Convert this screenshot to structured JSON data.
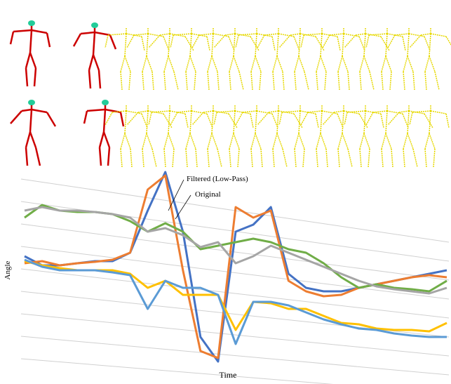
{
  "chart_data": {
    "type": "line",
    "y_label": "Angle",
    "x_label": "Time",
    "annotations": [
      "Filtered (Low-Pass)",
      "Original"
    ],
    "x": [
      0,
      1,
      2,
      3,
      4,
      5,
      6,
      7,
      8,
      9,
      10,
      11,
      12,
      13,
      14,
      15,
      16,
      17,
      18,
      19,
      20,
      21,
      22,
      23,
      24
    ],
    "xlim": [
      0,
      24
    ],
    "ylim": [
      0,
      290
    ],
    "series": [
      {
        "color": "#4472c4",
        "values": [
          165,
          152,
          152,
          155,
          158,
          158,
          170,
          230,
          285,
          200,
          50,
          15,
          200,
          210,
          235,
          140,
          120,
          115,
          115,
          120,
          125,
          130,
          135,
          140,
          145
        ]
      },
      {
        "color": "#ed7d31",
        "values": [
          155,
          158,
          152,
          155,
          157,
          160,
          170,
          260,
          280,
          145,
          30,
          20,
          235,
          220,
          230,
          130,
          115,
          108,
          110,
          120,
          125,
          130,
          135,
          138,
          135
        ]
      },
      {
        "color": "#70ad47",
        "values": [
          220,
          238,
          230,
          228,
          228,
          225,
          215,
          200,
          212,
          200,
          175,
          180,
          185,
          190,
          185,
          175,
          170,
          155,
          135,
          120,
          125,
          120,
          118,
          115,
          130
        ]
      },
      {
        "color": "#a5a5a5",
        "values": [
          230,
          235,
          230,
          230,
          228,
          225,
          220,
          200,
          205,
          195,
          178,
          185,
          155,
          165,
          180,
          170,
          160,
          150,
          140,
          130,
          122,
          118,
          115,
          112,
          120
        ]
      },
      {
        "color": "#ffc000",
        "values": [
          158,
          152,
          148,
          145,
          145,
          145,
          140,
          120,
          130,
          110,
          110,
          110,
          60,
          100,
          98,
          90,
          90,
          80,
          70,
          68,
          62,
          60,
          60,
          58,
          70
        ]
      },
      {
        "color": "#5b9bd5",
        "values": [
          160,
          150,
          145,
          145,
          145,
          142,
          138,
          90,
          130,
          120,
          120,
          110,
          40,
          100,
          100,
          95,
          85,
          75,
          68,
          62,
          60,
          55,
          52,
          50,
          50
        ]
      }
    ]
  }
}
